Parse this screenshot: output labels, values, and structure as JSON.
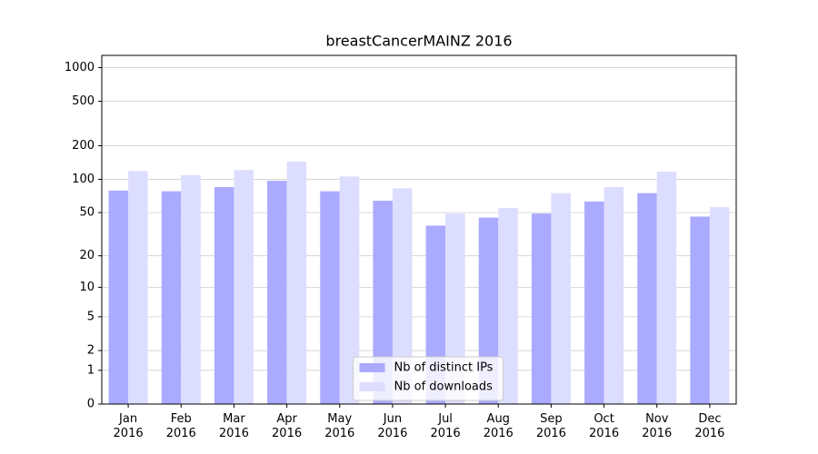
{
  "chart_data": {
    "type": "bar",
    "title": "breastCancerMAINZ 2016",
    "categories": [
      "Jan 2016",
      "Feb 2016",
      "Mar 2016",
      "Apr 2016",
      "May 2016",
      "Jun 2016",
      "Jul 2016",
      "Aug 2016",
      "Sep 2016",
      "Oct 2016",
      "Nov 2016",
      "Dec 2016"
    ],
    "series": [
      {
        "name": "Nb of distinct IPs",
        "color": "#aaaaff",
        "values": [
          79,
          78,
          85,
          97,
          78,
          64,
          38,
          45,
          49,
          63,
          75,
          46
        ]
      },
      {
        "name": "Nb of downloads",
        "color": "#ddddff",
        "values": [
          119,
          109,
          121,
          144,
          106,
          83,
          49,
          55,
          75,
          85,
          117,
          56
        ]
      }
    ],
    "yscale": "log1p",
    "ylim": [
      0,
      1285
    ],
    "yticks": [
      0,
      1,
      2,
      5,
      10,
      20,
      50,
      100,
      200,
      500,
      1000
    ],
    "grid": true,
    "legend": "lower center"
  }
}
